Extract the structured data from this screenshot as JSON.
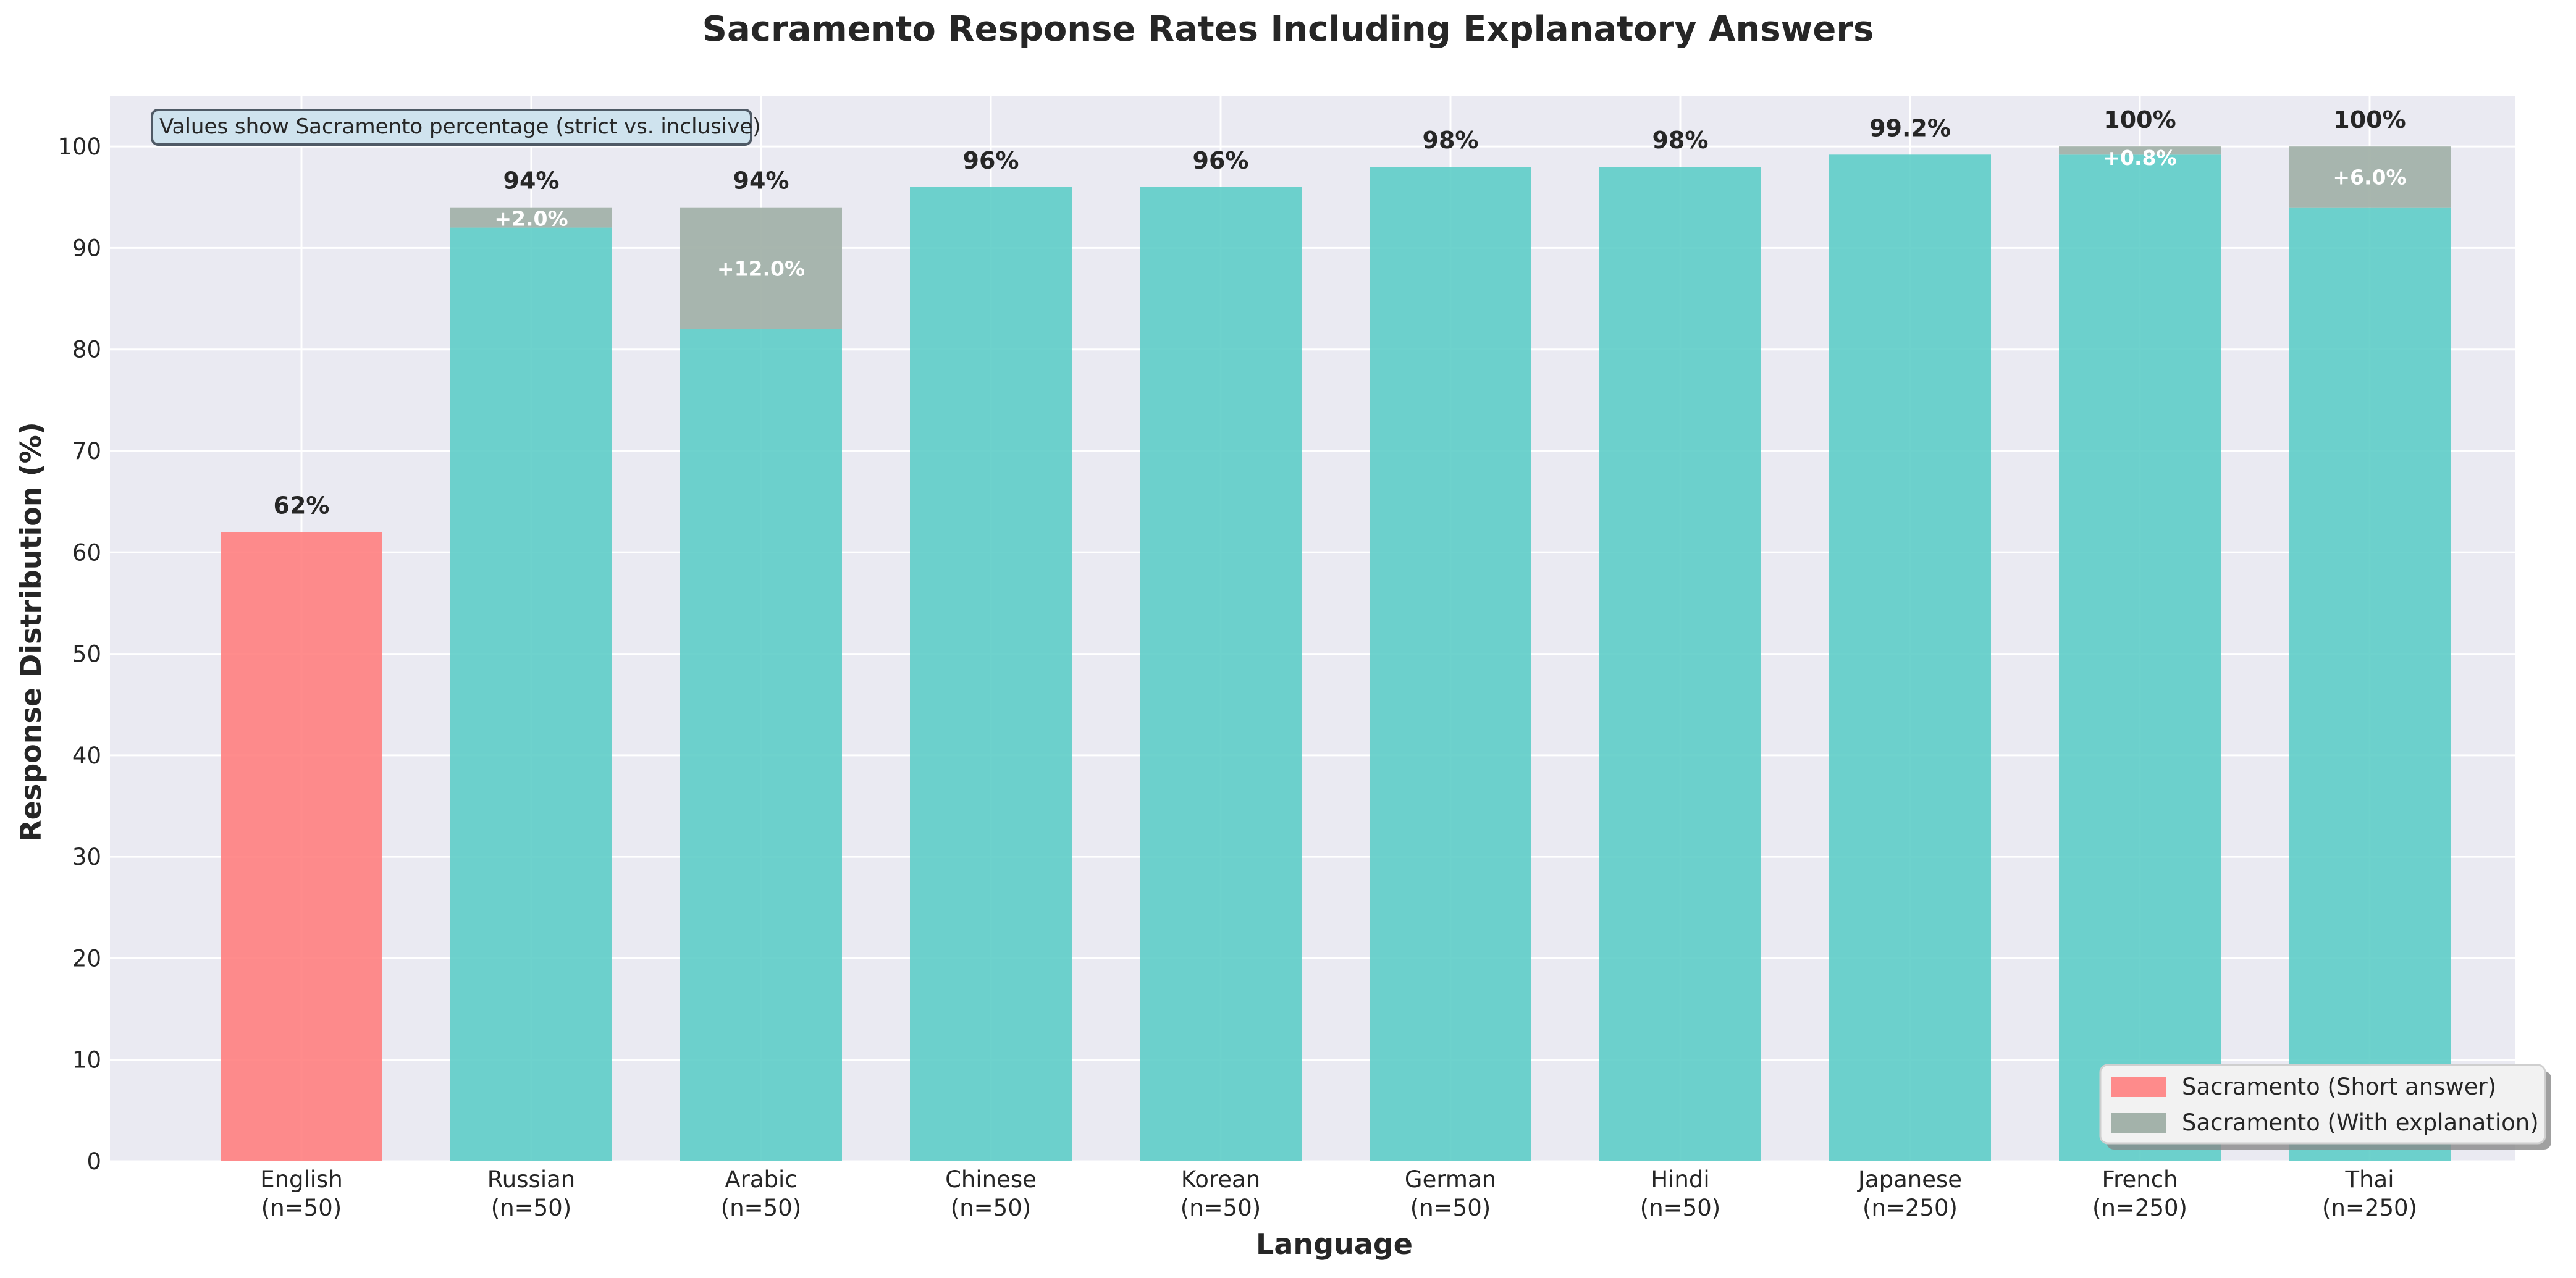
{
  "chart_data": {
    "type": "bar",
    "stacked": true,
    "title": "Sacramento Response Rates Including Explanatory Answers",
    "xlabel": "Language",
    "ylabel": "Response Distribution (%)",
    "ylim": [
      0,
      105
    ],
    "yticks": [
      0,
      10,
      20,
      30,
      40,
      50,
      60,
      70,
      80,
      90,
      100
    ],
    "grid": true,
    "categories": [
      "English",
      "Russian",
      "Arabic",
      "Chinese",
      "Korean",
      "German",
      "Hindi",
      "Japanese",
      "French",
      "Thai"
    ],
    "sample_sizes": [
      "(n=50)",
      "(n=50)",
      "(n=50)",
      "(n=50)",
      "(n=50)",
      "(n=50)",
      "(n=50)",
      "(n=250)",
      "(n=250)",
      "(n=250)"
    ],
    "series": [
      {
        "name": "Sacramento (Short answer)",
        "values": [
          62,
          92,
          82,
          96,
          96,
          98,
          98,
          99.2,
          99.2,
          94
        ]
      },
      {
        "name": "Sacramento (With explanation)",
        "values": [
          0,
          2,
          12,
          0,
          0,
          0,
          0,
          0,
          0.8,
          6
        ]
      }
    ],
    "total_labels": [
      "62%",
      "94%",
      "94%",
      "96%",
      "96%",
      "98%",
      "98%",
      "99.2%",
      "100%",
      "100%"
    ],
    "increment_labels": [
      "",
      "+2.0%",
      "+12.0%",
      "",
      "",
      "",
      "",
      "",
      "+0.8%",
      "+6.0%"
    ],
    "annotation": "Values show Sacramento percentage (strict vs. inclusive)",
    "legend_position": "bottom-right",
    "colors": {
      "english_short": "#ff7f7f",
      "short": "#5ecdc8",
      "explanation": "#a3b2aa",
      "plot_bg": "#eaeaf2",
      "grid": "#ffffff",
      "annotation_bg": "#cfe3ee",
      "annotation_border": "#4f5a66"
    }
  }
}
